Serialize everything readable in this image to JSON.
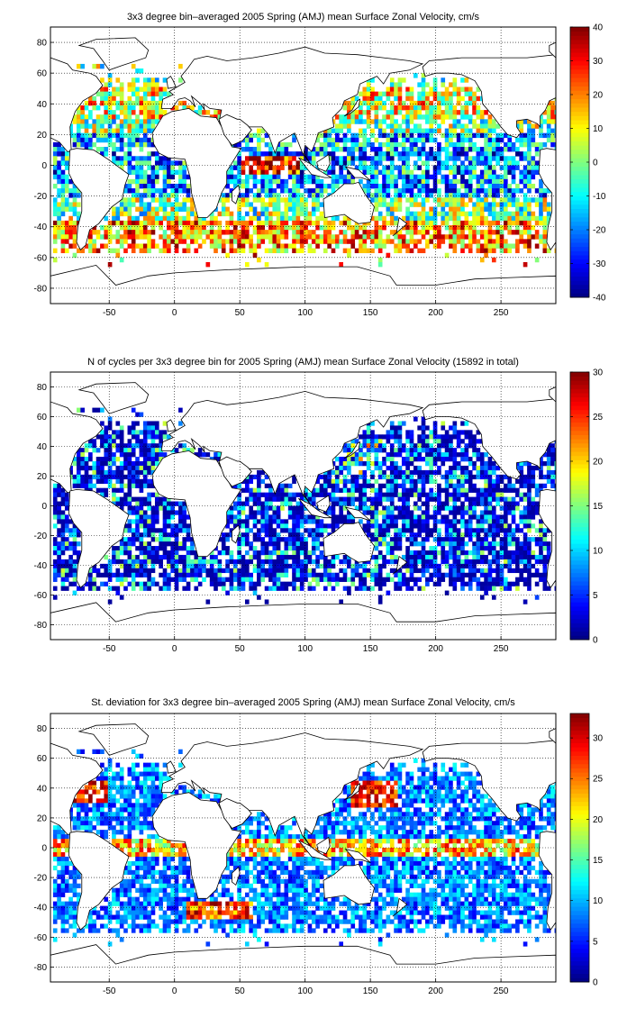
{
  "chart_data": [
    {
      "type": "heatmap",
      "title": "3x3 degree bin–averaged 2005 Spring (AMJ) mean Surface Zonal Velocity, cm/s",
      "xlim": [
        -95,
        292
      ],
      "ylim": [
        -90,
        90
      ],
      "x_ticks": [
        -50,
        0,
        50,
        100,
        150,
        200,
        250
      ],
      "y_ticks": [
        -80,
        -60,
        -40,
        -20,
        0,
        20,
        40,
        60,
        80
      ],
      "grid": true,
      "colormap": "jet",
      "colorbar": {
        "min": -40,
        "max": 40,
        "ticks": [
          -40,
          -30,
          -20,
          -10,
          0,
          10,
          20,
          30,
          40
        ]
      },
      "field": "zonal_velocity"
    },
    {
      "type": "heatmap",
      "title": "N of cycles per 3x3 degree bin for 2005 Spring (AMJ) mean Surface Zonal Velocity (15892 in total)",
      "xlim": [
        -95,
        292
      ],
      "ylim": [
        -90,
        90
      ],
      "x_ticks": [
        -50,
        0,
        50,
        100,
        150,
        200,
        250
      ],
      "y_ticks": [
        -80,
        -60,
        -40,
        -20,
        0,
        20,
        40,
        60,
        80
      ],
      "grid": true,
      "colormap": "jet",
      "colorbar": {
        "min": 0,
        "max": 30,
        "ticks": [
          0,
          5,
          10,
          15,
          20,
          25,
          30
        ]
      },
      "field": "cycle_count"
    },
    {
      "type": "heatmap",
      "title": "St. deviation for 3x3 degree bin–averaged 2005 Spring (AMJ) mean Surface Zonal Velocity, cm/s",
      "xlim": [
        -95,
        292
      ],
      "ylim": [
        -90,
        90
      ],
      "x_ticks": [
        -50,
        0,
        50,
        100,
        150,
        200,
        250
      ],
      "y_ticks": [
        -80,
        -60,
        -40,
        -20,
        0,
        20,
        40,
        60,
        80
      ],
      "grid": true,
      "colormap": "jet",
      "colorbar": {
        "min": 0,
        "max": 33,
        "ticks": [
          0,
          5,
          10,
          15,
          20,
          25,
          30
        ]
      },
      "field": "std_dev"
    }
  ]
}
